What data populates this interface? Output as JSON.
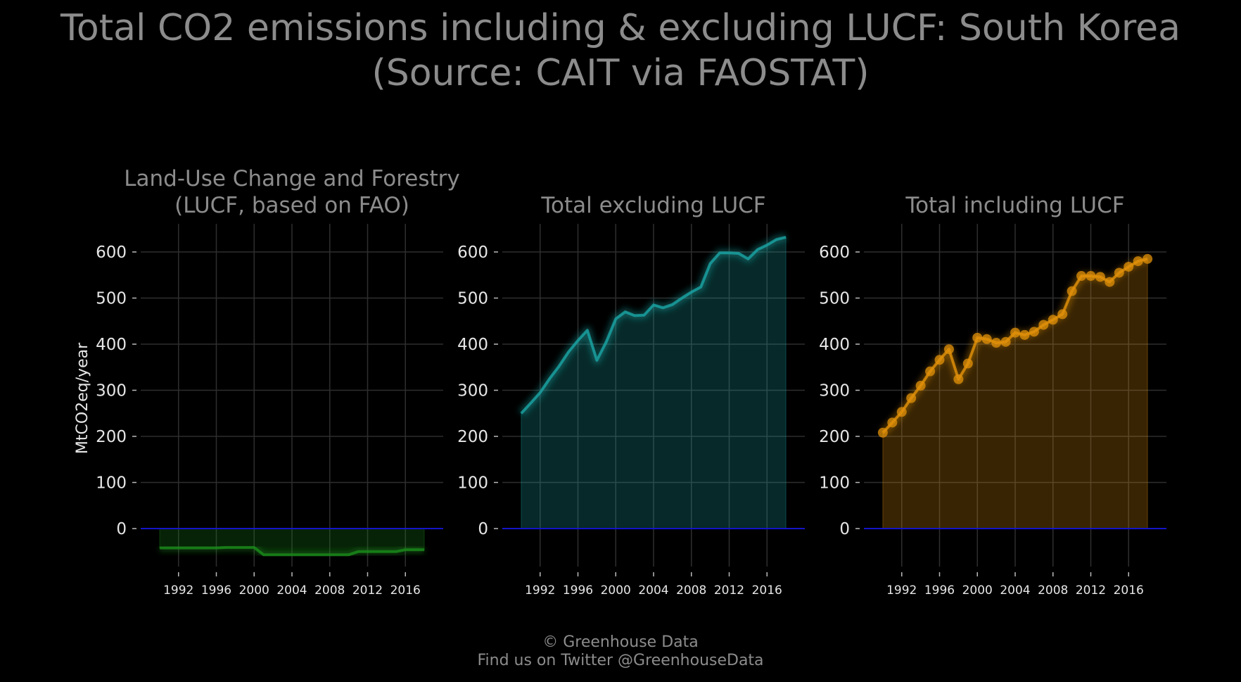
{
  "title_line1": "Total CO2 emissions including & excluding LUCF: South Korea",
  "title_line2": "(Source: CAIT via FAOSTAT)",
  "footer_line1": "© Greenhouse Data",
  "footer_line2": "Find us on Twitter @GreenhouseData",
  "colors": {
    "background": "#000000",
    "lucf": "#1a8a1a",
    "excl": "#1aa3a3",
    "incl": "#e0900a",
    "zero_line": "#1414c8"
  },
  "chart_data": [
    {
      "type": "area",
      "title_line1": "Land-Use Change and Forestry",
      "title_line2": "(LUCF, based on FAO)",
      "ylabel": "MtCO2eq/year",
      "xlim": [
        1988,
        2020
      ],
      "ylim": [
        -100,
        660
      ],
      "y_ticks": [
        0,
        100,
        200,
        300,
        400,
        500,
        600
      ],
      "x_ticks": [
        1992,
        1996,
        2000,
        2004,
        2008,
        2012,
        2016
      ],
      "grid": true,
      "markers": false,
      "series": [
        {
          "x": [
            1990,
            1991,
            1992,
            1993,
            1994,
            1995,
            1996,
            1997,
            1998,
            1999,
            2000,
            2001,
            2002,
            2003,
            2004,
            2005,
            2006,
            2007,
            2008,
            2009,
            2010,
            2011,
            2012,
            2013,
            2014,
            2015,
            2016,
            2017,
            2018
          ],
          "values": [
            -42,
            -42,
            -42,
            -42,
            -42,
            -42,
            -42,
            -41,
            -41,
            -41,
            -41,
            -57,
            -57,
            -57,
            -57,
            -57,
            -57,
            -57,
            -57,
            -57,
            -57,
            -50,
            -50,
            -50,
            -50,
            -50,
            -46,
            -46,
            -46
          ]
        }
      ]
    },
    {
      "type": "area",
      "title_line1": "",
      "title_line2": "Total excluding LUCF",
      "ylabel": "",
      "xlim": [
        1988,
        2020
      ],
      "ylim": [
        -100,
        660
      ],
      "y_ticks": [
        0,
        100,
        200,
        300,
        400,
        500,
        600
      ],
      "x_ticks": [
        1992,
        1996,
        2000,
        2004,
        2008,
        2012,
        2016
      ],
      "grid": true,
      "markers": false,
      "series": [
        {
          "x": [
            1990,
            1991,
            1992,
            1993,
            1994,
            1995,
            1996,
            1997,
            1998,
            1999,
            2000,
            2001,
            2002,
            2003,
            2004,
            2005,
            2006,
            2007,
            2008,
            2009,
            2010,
            2011,
            2012,
            2013,
            2014,
            2015,
            2016,
            2017,
            2018
          ],
          "values": [
            250,
            272,
            295,
            325,
            352,
            383,
            408,
            430,
            365,
            405,
            455,
            470,
            462,
            463,
            485,
            479,
            486,
            500,
            513,
            524,
            575,
            598,
            598,
            597,
            585,
            605,
            615,
            627,
            632
          ]
        }
      ]
    },
    {
      "type": "area",
      "title_line1": "",
      "title_line2": "Total including LUCF",
      "ylabel": "",
      "xlim": [
        1988,
        2020
      ],
      "ylim": [
        -100,
        660
      ],
      "y_ticks": [
        0,
        100,
        200,
        300,
        400,
        500,
        600
      ],
      "x_ticks": [
        1992,
        1996,
        2000,
        2004,
        2008,
        2012,
        2016
      ],
      "grid": true,
      "markers": true,
      "series": [
        {
          "x": [
            1990,
            1991,
            1992,
            1993,
            1994,
            1995,
            1996,
            1997,
            1998,
            1999,
            2000,
            2001,
            2002,
            2003,
            2004,
            2005,
            2006,
            2007,
            2008,
            2009,
            2010,
            2011,
            2012,
            2013,
            2014,
            2015,
            2016,
            2017,
            2018
          ],
          "values": [
            208,
            230,
            253,
            283,
            310,
            341,
            366,
            389,
            324,
            358,
            414,
            411,
            403,
            405,
            425,
            420,
            427,
            442,
            453,
            465,
            515,
            548,
            548,
            546,
            535,
            555,
            568,
            580,
            585
          ]
        }
      ]
    }
  ]
}
